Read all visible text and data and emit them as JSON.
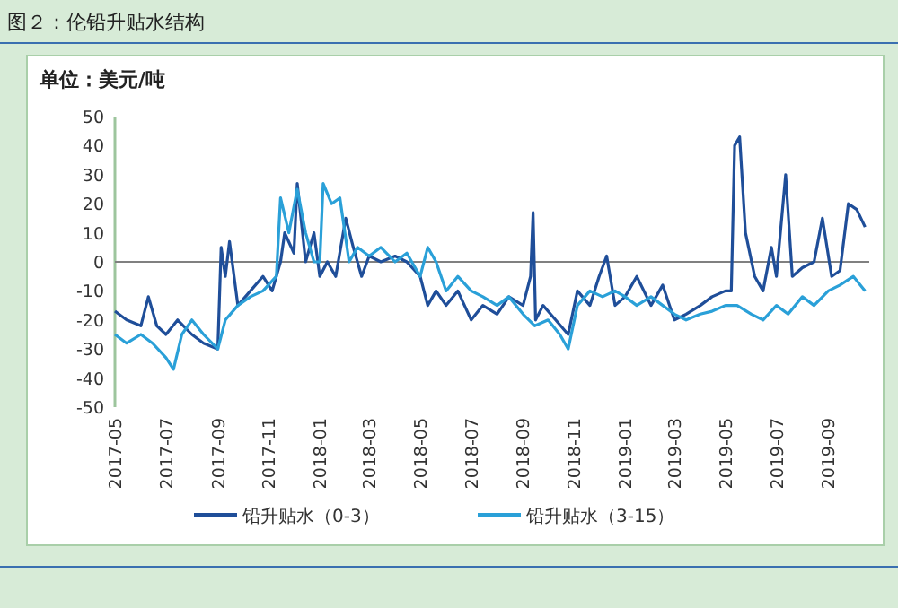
{
  "chart_data": {
    "type": "line",
    "title": "图２：伦铅升贴水结构",
    "ylabel": "单位：美元/吨",
    "xlim": [
      "2017-05-01",
      "2019-10-20"
    ],
    "xticks": [
      "2017-05",
      "2017-07",
      "2017-09",
      "2017-11",
      "2018-01",
      "2018-03",
      "2018-05",
      "2018-07",
      "2018-09",
      "2018-11",
      "2019-01",
      "2019-03",
      "2019-05",
      "2019-07",
      "2019-09"
    ],
    "ylim": [
      -50,
      50
    ],
    "yticks": [
      -50,
      -40,
      -30,
      -20,
      -10,
      0,
      10,
      20,
      30,
      40,
      50
    ],
    "grid": false,
    "legend": "bottom",
    "line_style": "solid",
    "marker": "none",
    "ref_lines": [
      {
        "axis": "y",
        "value": 0,
        "color": "#808080"
      }
    ],
    "series": [
      {
        "name": "铅升贴水（0-3）",
        "color": "#1f4e99",
        "x": [
          "2017-05-01",
          "2017-05-15",
          "2017-06-01",
          "2017-06-10",
          "2017-06-20",
          "2017-07-01",
          "2017-07-15",
          "2017-08-01",
          "2017-08-15",
          "2017-09-01",
          "2017-09-05",
          "2017-09-10",
          "2017-09-15",
          "2017-09-25",
          "2017-10-10",
          "2017-10-25",
          "2017-11-05",
          "2017-11-15",
          "2017-11-20",
          "2017-12-01",
          "2017-12-05",
          "2017-12-15",
          "2017-12-25",
          "2018-01-01",
          "2018-01-10",
          "2018-01-20",
          "2018-02-01",
          "2018-02-10",
          "2018-02-20",
          "2018-03-01",
          "2018-03-15",
          "2018-04-01",
          "2018-04-15",
          "2018-05-01",
          "2018-05-10",
          "2018-05-20",
          "2018-06-01",
          "2018-06-15",
          "2018-07-01",
          "2018-07-15",
          "2018-08-01",
          "2018-08-15",
          "2018-09-01",
          "2018-09-10",
          "2018-09-13",
          "2018-09-16",
          "2018-09-25",
          "2018-10-10",
          "2018-10-25",
          "2018-11-05",
          "2018-11-20",
          "2018-12-01",
          "2018-12-10",
          "2018-12-20",
          "2019-01-01",
          "2019-01-15",
          "2019-02-01",
          "2019-02-15",
          "2019-03-01",
          "2019-03-15",
          "2019-04-01",
          "2019-04-15",
          "2019-05-01",
          "2019-05-08",
          "2019-05-12",
          "2019-05-18",
          "2019-05-25",
          "2019-06-05",
          "2019-06-15",
          "2019-06-25",
          "2019-07-01",
          "2019-07-12",
          "2019-07-20",
          "2019-08-01",
          "2019-08-15",
          "2019-08-25",
          "2019-09-05",
          "2019-09-15",
          "2019-09-25",
          "2019-10-05",
          "2019-10-15"
        ],
        "values": [
          -17,
          -20,
          -22,
          -12,
          -22,
          -25,
          -20,
          -25,
          -28,
          -30,
          5,
          -5,
          7,
          -15,
          -10,
          -5,
          -10,
          0,
          10,
          3,
          27,
          0,
          10,
          -5,
          0,
          -5,
          15,
          5,
          -5,
          2,
          0,
          2,
          0,
          -5,
          -15,
          -10,
          -15,
          -10,
          -20,
          -15,
          -18,
          -12,
          -15,
          -5,
          17,
          -20,
          -15,
          -20,
          -25,
          -10,
          -15,
          -5,
          2,
          -15,
          -12,
          -5,
          -15,
          -8,
          -20,
          -18,
          -15,
          -12,
          -10,
          -10,
          40,
          43,
          10,
          -5,
          -10,
          5,
          -5,
          30,
          -5,
          -2,
          0,
          15,
          -5,
          -3,
          20,
          18,
          12
        ]
      },
      {
        "name": "铅升贴水（3-15）",
        "color": "#2aa0d8",
        "x": [
          "2017-05-01",
          "2017-05-15",
          "2017-06-01",
          "2017-06-15",
          "2017-07-01",
          "2017-07-10",
          "2017-07-20",
          "2017-08-01",
          "2017-08-15",
          "2017-09-01",
          "2017-09-10",
          "2017-09-25",
          "2017-10-10",
          "2017-10-25",
          "2017-11-10",
          "2017-11-15",
          "2017-11-25",
          "2017-12-05",
          "2017-12-15",
          "2017-12-25",
          "2018-01-01",
          "2018-01-05",
          "2018-01-15",
          "2018-01-25",
          "2018-02-05",
          "2018-02-15",
          "2018-03-01",
          "2018-03-15",
          "2018-04-01",
          "2018-04-15",
          "2018-05-01",
          "2018-05-10",
          "2018-05-20",
          "2018-06-01",
          "2018-06-15",
          "2018-07-01",
          "2018-07-15",
          "2018-08-01",
          "2018-08-15",
          "2018-09-01",
          "2018-09-15",
          "2018-10-01",
          "2018-10-15",
          "2018-10-25",
          "2018-11-05",
          "2018-11-20",
          "2018-12-05",
          "2018-12-20",
          "2019-01-01",
          "2019-01-15",
          "2019-02-01",
          "2019-02-15",
          "2019-03-01",
          "2019-03-15",
          "2019-04-01",
          "2019-04-15",
          "2019-05-01",
          "2019-05-15",
          "2019-06-01",
          "2019-06-15",
          "2019-07-01",
          "2019-07-15",
          "2019-08-01",
          "2019-08-15",
          "2019-09-01",
          "2019-09-15",
          "2019-10-01",
          "2019-10-15"
        ],
        "values": [
          -25,
          -28,
          -25,
          -28,
          -33,
          -37,
          -25,
          -20,
          -25,
          -30,
          -20,
          -15,
          -12,
          -10,
          -5,
          22,
          10,
          25,
          10,
          0,
          0,
          27,
          20,
          22,
          0,
          5,
          2,
          5,
          0,
          3,
          -5,
          5,
          0,
          -10,
          -5,
          -10,
          -12,
          -15,
          -12,
          -18,
          -22,
          -20,
          -25,
          -30,
          -15,
          -10,
          -12,
          -10,
          -12,
          -15,
          -12,
          -15,
          -18,
          -20,
          -18,
          -17,
          -15,
          -15,
          -18,
          -20,
          -15,
          -18,
          -12,
          -15,
          -10,
          -8,
          -5,
          -10
        ]
      }
    ]
  }
}
